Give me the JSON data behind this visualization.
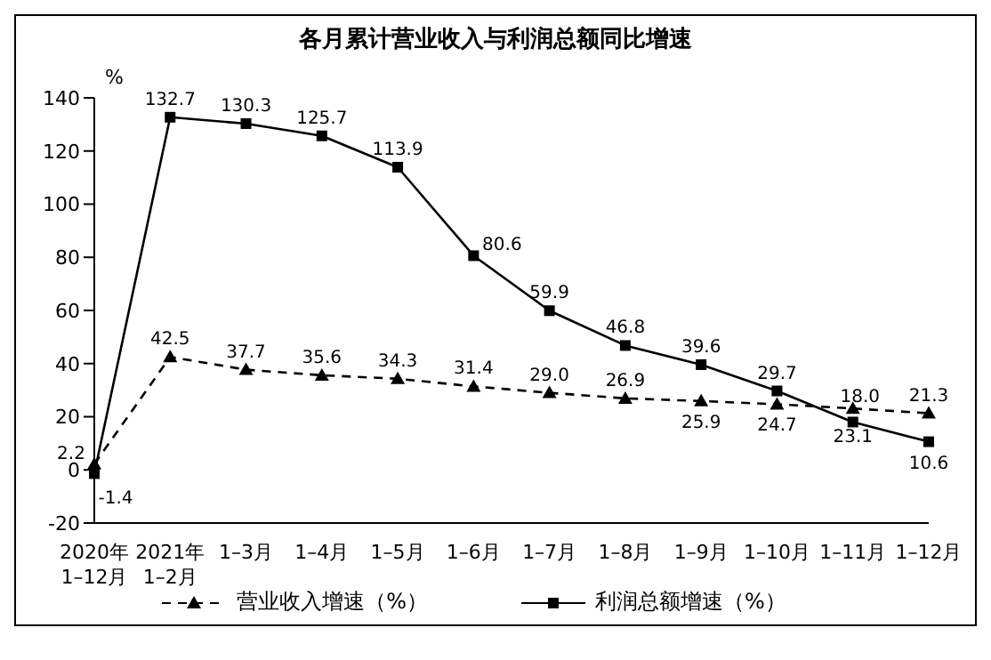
{
  "chart_data": {
    "type": "line",
    "title": "各月累计营业收入与利润总额同比增速",
    "ylabel": "%",
    "categories": [
      "2020年\n1–12月",
      "2021年\n1–2月",
      "1–3月",
      "1–4月",
      "1–5月",
      "1–6月",
      "1–7月",
      "1–8月",
      "1–9月",
      "1–10月",
      "1–11月",
      "1–12月"
    ],
    "series": [
      {
        "name": "营业收入增速（%）",
        "color": "#000000",
        "marker": "triangle",
        "line_style": "dashed",
        "values": [
          2.2,
          42.5,
          37.7,
          35.6,
          34.3,
          31.4,
          29.0,
          26.9,
          25.9,
          24.7,
          23.1,
          21.3
        ],
        "value_labels": [
          "2.2",
          "42.5",
          "37.7",
          "35.6",
          "34.3",
          "31.4",
          "29.0",
          "26.9",
          "25.9",
          "24.7",
          "23.1",
          "21.3"
        ]
      },
      {
        "name": "利润总额增速（%）",
        "color": "#000000",
        "marker": "square",
        "line_style": "solid",
        "values": [
          -1.4,
          132.7,
          130.3,
          125.7,
          113.9,
          80.6,
          59.9,
          46.8,
          39.6,
          29.7,
          18.0,
          10.6
        ],
        "value_labels": [
          "-1.4",
          "132.7",
          "130.3",
          "125.7",
          "113.9",
          "80.6",
          "59.9",
          "46.8",
          "39.6",
          "29.7",
          "18.0",
          "10.6"
        ]
      }
    ],
    "ylim": [
      -20,
      140
    ],
    "yticks": [
      -20,
      0,
      20,
      40,
      60,
      80,
      100,
      120,
      140
    ],
    "grid": false,
    "legend": "bottom"
  }
}
